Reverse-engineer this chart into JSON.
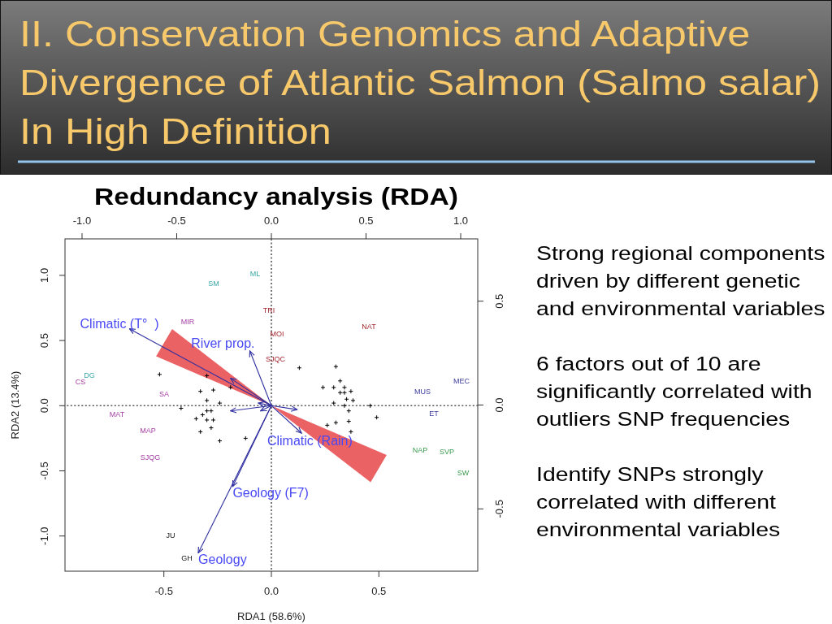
{
  "chart_data": {
    "type": "scatter",
    "title": "II. Conservation Genomics and Adaptive Divergence of Atlantic Salmon (Salmo salar) In High Definition",
    "subtitle": "Redundancy analysis (RDA)",
    "xlabel": "RDA1 (58.6%)",
    "ylabel": "RDA2 (13.4%)",
    "annotations": [
      "Strong regional components driven by different genetic and environmental variables",
      "6 factors out of 10 are significantly correlated with outliers SNP frequencies",
      "Identify SNPs strongly correlated with different environmental variables",
      "SM",
      "ML",
      "DG",
      "TRI",
      "MOI",
      "SJQC",
      "NAT",
      "MIR",
      "CS",
      "SA",
      "MAT",
      "MAP",
      "SJQG",
      "MUS",
      "MEC",
      "ET",
      "NAP",
      "SVP",
      "SW",
      "JU",
      "GH"
    ],
    "xlim": [
      -0.96,
      0.96
    ],
    "ylim": [
      -1.27,
      1.28
    ],
    "xticks": [
      -0.5,
      {
        "value": 0,
        "label": "0.0"
      },
      0.5
    ],
    "yticks": [
      {
        "value": -1,
        "label": "-1.0"
      },
      -0.5,
      {
        "value": 0,
        "label": "0.0"
      },
      0.5,
      {
        "value": 1,
        "label": "1.0"
      }
    ],
    "x2lim": [
      -1.09,
      1.09
    ],
    "x2ticks": [
      {
        "value": -1,
        "label": "-1.0"
      },
      -0.5,
      {
        "value": 0,
        "label": "0.0"
      },
      0.5,
      {
        "value": 1,
        "label": "1.0"
      }
    ],
    "y2lim": [
      -0.8,
      0.8
    ],
    "y2ticks": [
      -0.5,
      {
        "value": 0,
        "label": "0.0"
      },
      0.5
    ],
    "ref_lines": [
      {
        "axis": "x",
        "value": 0,
        "color": "#555555",
        "line_style": "dotted"
      },
      {
        "axis": "y",
        "value": 0,
        "color": "#555555",
        "line_style": "dotted"
      }
    ],
    "series": [
      {
        "marker": "cross",
        "color": "#000000",
        "x": [
          -0.52,
          -0.33,
          -0.27,
          -0.19,
          -0.3,
          -0.24,
          -0.42,
          -0.35,
          -0.32,
          -0.3,
          -0.28,
          -0.3,
          -0.27,
          -0.28,
          -0.33,
          -0.24,
          -0.12,
          -0.3,
          0.13,
          0.3,
          0.32,
          0.24,
          0.29,
          0.32,
          0.34,
          0.34,
          0.37,
          0.35,
          0.38,
          0.29,
          0.34,
          0.46,
          0.36,
          0.49,
          0.3,
          0.36,
          0.37,
          0.26
        ],
        "values": [
          0.24,
          0.11,
          0.12,
          0.14,
          0.04,
          0.02,
          -0.02,
          -0.1,
          -0.07,
          -0.04,
          -0.04,
          -0.11,
          -0.11,
          -0.17,
          -0.2,
          -0.27,
          -0.25,
          0.23,
          0.29,
          0.3,
          0.19,
          0.14,
          0.14,
          0.1,
          0.1,
          0.14,
          0.11,
          0.05,
          0.04,
          0.02,
          0.0,
          0.0,
          -0.04,
          -0.09,
          -0.13,
          -0.12,
          -0.2,
          -0.15
        ]
      },
      {
        "type": "line",
        "name": "Climatic (T°  )",
        "color": "#2f2fa0",
        "x": [
          0,
          -0.66
        ],
        "values": [
          0,
          0.59
        ]
      },
      {
        "type": "line",
        "name": "River prop.",
        "color": "#2f2fa0",
        "x": [
          0,
          -0.1
        ],
        "values": [
          0,
          0.42
        ]
      },
      {
        "type": "line",
        "name": "Climatic (Rain)",
        "color": "#2f2fa0",
        "x": [
          0,
          0.14
        ],
        "values": [
          0,
          -0.21
        ]
      },
      {
        "type": "line",
        "name": "Geology (F7)",
        "color": "#2f2fa0",
        "x": [
          0,
          -0.18
        ],
        "values": [
          0,
          -0.62
        ]
      },
      {
        "type": "line",
        "name": "Geology",
        "color": "#2f2fa0",
        "x": [
          0,
          -0.34
        ],
        "values": [
          0,
          -1.13
        ]
      },
      {
        "type": "line",
        "color": "#2f2fa0",
        "x": [
          0,
          -0.19
        ],
        "values": [
          0,
          0.21
        ]
      },
      {
        "type": "line",
        "color": "#2f2fa0",
        "x": [
          0,
          -0.19
        ],
        "values": [
          0,
          -0.04
        ]
      },
      {
        "type": "line",
        "color": "#2f2fa0",
        "x": [
          0,
          -0.06
        ],
        "values": [
          0,
          0.02
        ]
      },
      {
        "type": "line",
        "color": "#2f2fa0",
        "x": [
          0,
          -0.05
        ],
        "values": [
          0,
          -0.04
        ]
      },
      {
        "type": "line",
        "color": "#2f2fa0",
        "x": [
          0,
          0.12
        ],
        "values": [
          0,
          -0.03
        ]
      }
    ]
  }
}
